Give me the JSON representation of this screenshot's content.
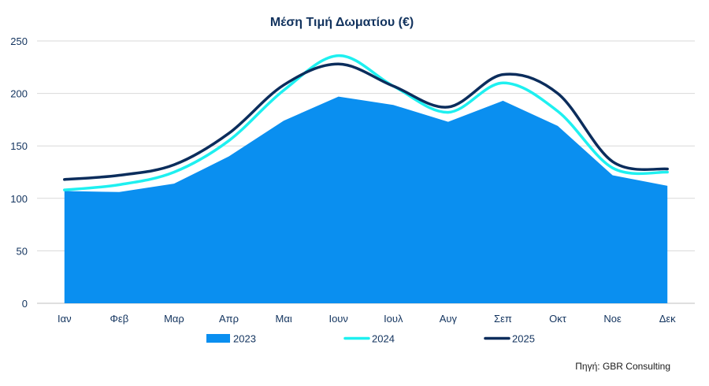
{
  "chart_data": {
    "type": "area",
    "title": "Μέση Τιμή Δωματίου (€)",
    "source": "Πηγή: GBR Consulting",
    "categories": [
      "Ιαν",
      "Φεβ",
      "Μαρ",
      "Απρ",
      "Μαι",
      "Ιουν",
      "Ιουλ",
      "Αυγ",
      "Σεπ",
      "Οκτ",
      "Νοε",
      "Δεκ"
    ],
    "ylim": [
      0,
      250
    ],
    "yticks": [
      "0",
      "50",
      "100",
      "150",
      "200",
      "250"
    ],
    "grid": true,
    "legend_position": "bottom",
    "series": [
      {
        "name": "2023",
        "kind": "area",
        "color": "#0a8ff0",
        "values": [
          107,
          106,
          114,
          140,
          174,
          197,
          189,
          173,
          193,
          169,
          122,
          112
        ]
      },
      {
        "name": "2024",
        "kind": "line",
        "color": "#1ef0f0",
        "values": [
          108,
          113,
          125,
          155,
          203,
          236,
          207,
          182,
          210,
          183,
          129,
          125
        ]
      },
      {
        "name": "2025",
        "kind": "line",
        "color": "#0b2d5c",
        "values": [
          118,
          122,
          132,
          162,
          208,
          228,
          207,
          187,
          218,
          200,
          135,
          128
        ]
      }
    ]
  }
}
